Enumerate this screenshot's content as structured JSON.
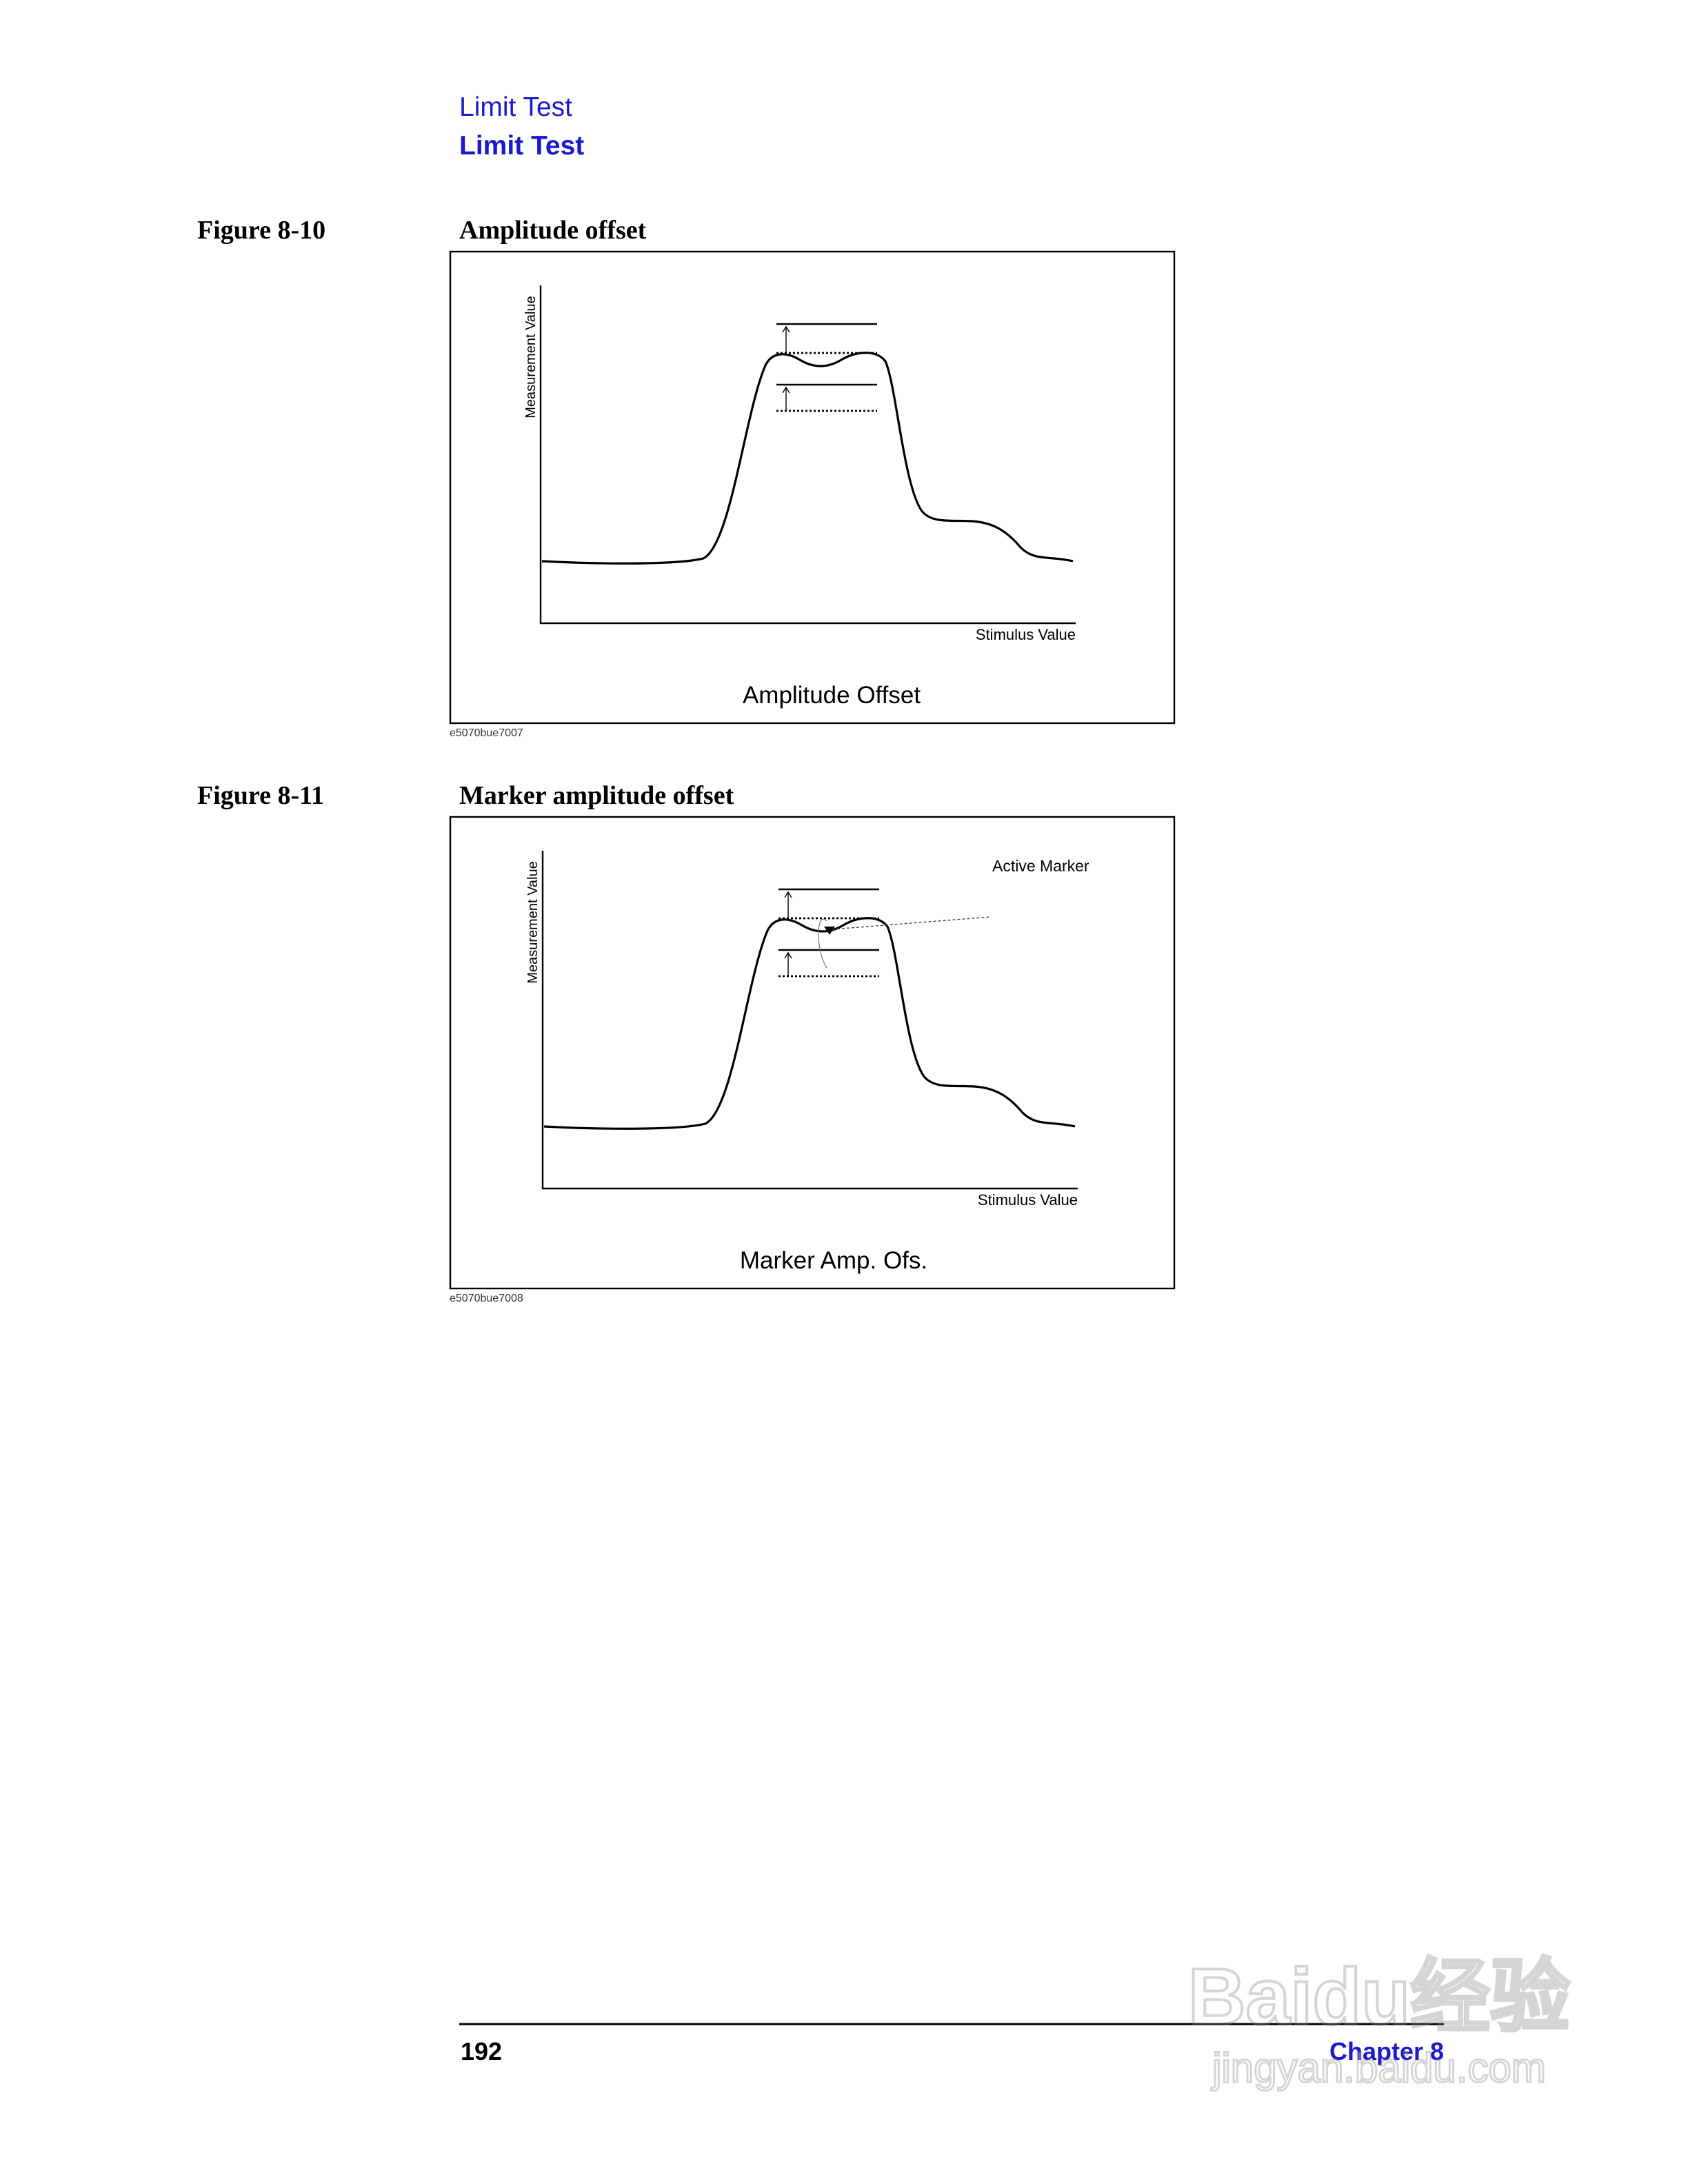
{
  "header": {
    "section": "Limit Test",
    "title": "Limit Test"
  },
  "figures": [
    {
      "label": "Figure 8-10",
      "title": "Amplitude offset",
      "y_axis_label": "Measurement Value",
      "x_axis_label": "Stimulus Value",
      "caption": "Amplitude Offset",
      "image_id": "e5070bue7007"
    },
    {
      "label": "Figure 8-11",
      "title": "Marker amplitude offset",
      "y_axis_label": "Measurement Value",
      "x_axis_label": "Stimulus Value",
      "annotation": "Active Marker",
      "caption": "Marker Amp. Ofs.",
      "image_id": "e5070bue7008"
    }
  ],
  "footer": {
    "page_number": "192",
    "chapter": "Chapter 8"
  },
  "watermark": {
    "brand": "Baidu经验",
    "url": "jingyan.baidu.com"
  }
}
